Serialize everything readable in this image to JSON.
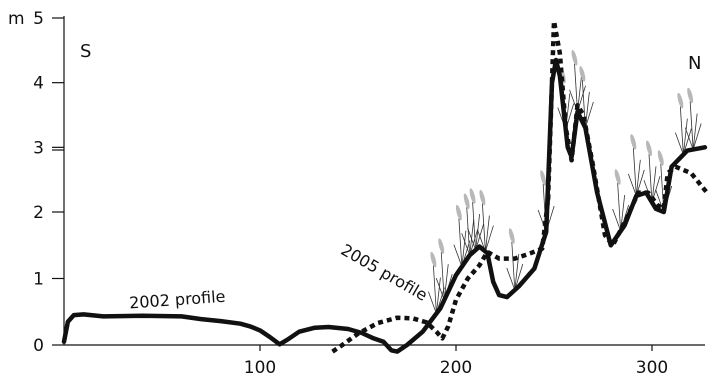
{
  "chart_data": {
    "type": "line",
    "unit_label": "m",
    "direction_labels": {
      "left": "S",
      "right": "N"
    },
    "x_ticks": [
      100,
      200,
      300
    ],
    "y_ticks": [
      {
        "label": "0",
        "value": 0
      },
      {
        "label": "1",
        "value": 1
      },
      {
        "label": "2",
        "value": 2
      },
      {
        "label": "3",
        "value": 3
      },
      {
        "label": "4",
        "value": 4
      },
      {
        "label": "5",
        "value": 5
      }
    ],
    "xlim": [
      0,
      328
    ],
    "ylim": [
      0,
      5
    ],
    "grid": false,
    "series": [
      {
        "name": "2002 profile",
        "style": "solid",
        "color": "#111111",
        "points": [
          [
            0,
            0.05
          ],
          [
            2,
            0.35
          ],
          [
            5,
            0.45
          ],
          [
            10,
            0.46
          ],
          [
            20,
            0.43
          ],
          [
            40,
            0.44
          ],
          [
            60,
            0.43
          ],
          [
            70,
            0.39
          ],
          [
            80,
            0.36
          ],
          [
            90,
            0.32
          ],
          [
            95,
            0.28
          ],
          [
            100,
            0.22
          ],
          [
            105,
            0.12
          ],
          [
            110,
            0.01
          ],
          [
            114,
            0.08
          ],
          [
            120,
            0.2
          ],
          [
            128,
            0.26
          ],
          [
            135,
            0.27
          ],
          [
            145,
            0.24
          ],
          [
            152,
            0.18
          ],
          [
            158,
            0.1
          ],
          [
            163,
            0.05
          ],
          [
            167,
            -0.08
          ],
          [
            170,
            -0.1
          ],
          [
            175,
            0.0
          ],
          [
            183,
            0.2
          ],
          [
            192,
            0.55
          ],
          [
            200,
            1.05
          ],
          [
            207,
            1.35
          ],
          [
            212,
            1.48
          ],
          [
            216,
            1.38
          ],
          [
            219,
            0.95
          ],
          [
            222,
            0.75
          ],
          [
            226,
            0.72
          ],
          [
            232,
            0.88
          ],
          [
            240,
            1.15
          ],
          [
            246,
            1.7
          ],
          [
            249,
            4.0
          ],
          [
            251,
            4.35
          ],
          [
            253,
            4.1
          ],
          [
            257,
            3.0
          ],
          [
            259,
            2.85
          ],
          [
            262,
            3.55
          ],
          [
            266,
            3.3
          ],
          [
            272,
            2.3
          ],
          [
            279,
            1.5
          ],
          [
            286,
            1.8
          ],
          [
            292,
            2.25
          ],
          [
            297,
            2.3
          ],
          [
            302,
            2.05
          ],
          [
            306,
            2.0
          ],
          [
            308,
            2.35
          ],
          [
            310,
            2.7
          ],
          [
            318,
            2.95
          ],
          [
            327,
            3.0
          ]
        ]
      },
      {
        "name": "2005 profile",
        "style": "dotted",
        "color": "#111111",
        "points": [
          [
            137,
            -0.1
          ],
          [
            142,
            0.0
          ],
          [
            150,
            0.17
          ],
          [
            160,
            0.33
          ],
          [
            170,
            0.41
          ],
          [
            178,
            0.4
          ],
          [
            185,
            0.34
          ],
          [
            190,
            0.2
          ],
          [
            193,
            0.1
          ],
          [
            196,
            0.28
          ],
          [
            200,
            0.68
          ],
          [
            206,
            1.0
          ],
          [
            212,
            1.2
          ],
          [
            216,
            1.4
          ],
          [
            222,
            1.3
          ],
          [
            230,
            1.3
          ],
          [
            238,
            1.38
          ],
          [
            244,
            1.45
          ],
          [
            247,
            2.2
          ],
          [
            250,
            4.95
          ],
          [
            253,
            4.45
          ],
          [
            256,
            3.3
          ],
          [
            259,
            2.8
          ],
          [
            262,
            3.65
          ],
          [
            265,
            3.5
          ],
          [
            270,
            2.7
          ],
          [
            276,
            1.65
          ],
          [
            280,
            1.5
          ],
          [
            287,
            1.9
          ],
          [
            293,
            2.3
          ],
          [
            298,
            2.3
          ],
          [
            303,
            2.1
          ],
          [
            306,
            2.05
          ],
          [
            308,
            2.6
          ],
          [
            312,
            2.7
          ],
          [
            320,
            2.6
          ],
          [
            328,
            2.3
          ]
        ]
      }
    ],
    "annotations": [
      {
        "text": "2002 profile",
        "x": 58,
        "y": 0.6,
        "rotate": -4
      },
      {
        "text": "2005 profile",
        "x": 162,
        "y": 1.02,
        "rotate": 30
      }
    ],
    "vegetation_x": [
      190,
      194,
      203,
      207,
      210,
      215,
      230,
      246,
      256,
      262,
      266,
      284,
      292,
      300,
      306,
      316,
      321
    ]
  }
}
